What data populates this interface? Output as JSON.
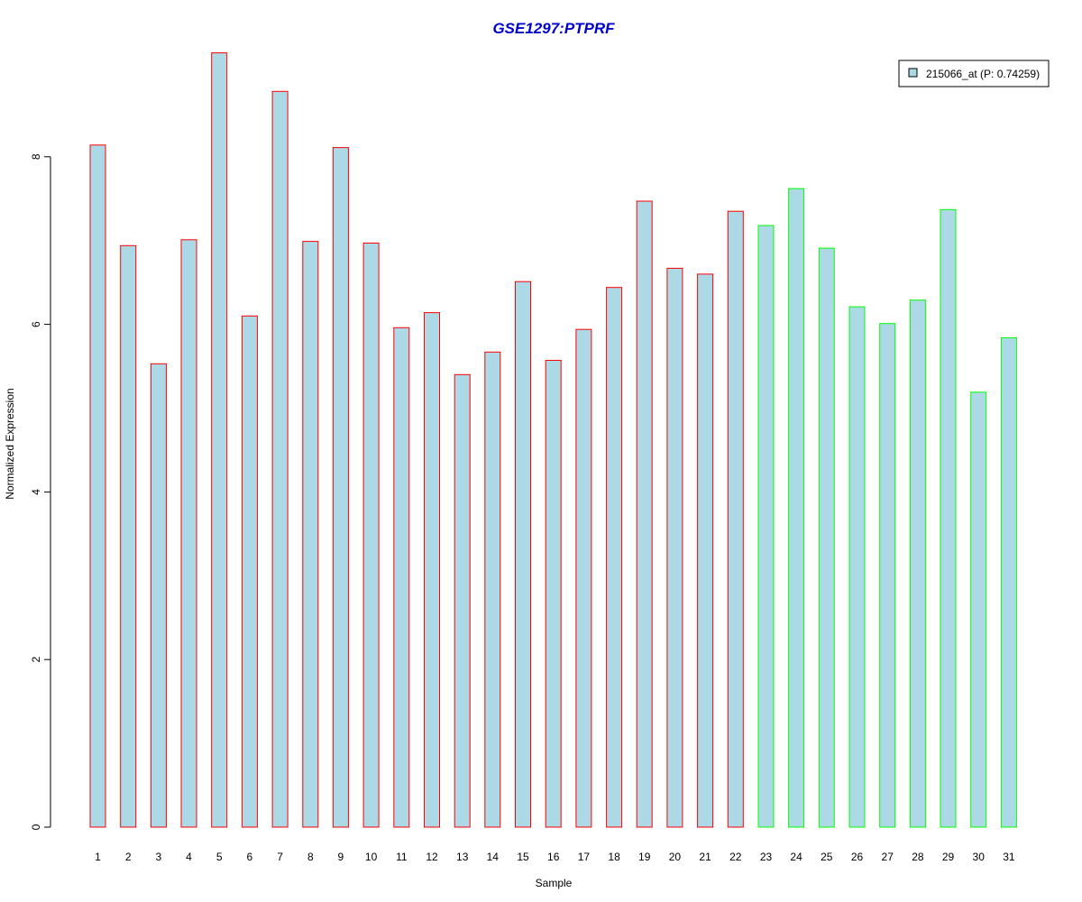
{
  "chart_data": {
    "type": "bar",
    "title": "GSE1297:PTPRF",
    "xlabel": "Sample",
    "ylabel": "Normalized Expression",
    "ylim": [
      0,
      9.5
    ],
    "yticks": [
      "0",
      "2",
      "4",
      "6",
      "8"
    ],
    "grid": false,
    "legend_position": "top-right",
    "categories": [
      "1",
      "2",
      "3",
      "4",
      "5",
      "6",
      "7",
      "8",
      "9",
      "10",
      "11",
      "12",
      "13",
      "14",
      "15",
      "16",
      "17",
      "18",
      "19",
      "20",
      "21",
      "22",
      "23",
      "24",
      "25",
      "26",
      "27",
      "28",
      "29",
      "30",
      "31"
    ],
    "series": [
      {
        "name": "215066_at (P: 0.74259)",
        "values": [
          8.14,
          6.94,
          5.53,
          7.01,
          9.24,
          6.1,
          8.78,
          6.99,
          8.11,
          6.97,
          5.96,
          6.14,
          5.4,
          5.67,
          6.51,
          5.57,
          5.94,
          6.44,
          7.47,
          6.67,
          6.6,
          7.35,
          7.18,
          7.62,
          6.91,
          6.21,
          6.01,
          6.29,
          7.37,
          5.19,
          5.84
        ]
      }
    ],
    "groups": [
      {
        "range": [
          1,
          22
        ],
        "color": "#ff0000"
      },
      {
        "range": [
          23,
          31
        ],
        "color": "#00ff00"
      }
    ],
    "colors": {
      "bar_fill": "#add8e6",
      "title": "#0000cc",
      "axis": "#000000",
      "legend_border": "#000000"
    }
  }
}
